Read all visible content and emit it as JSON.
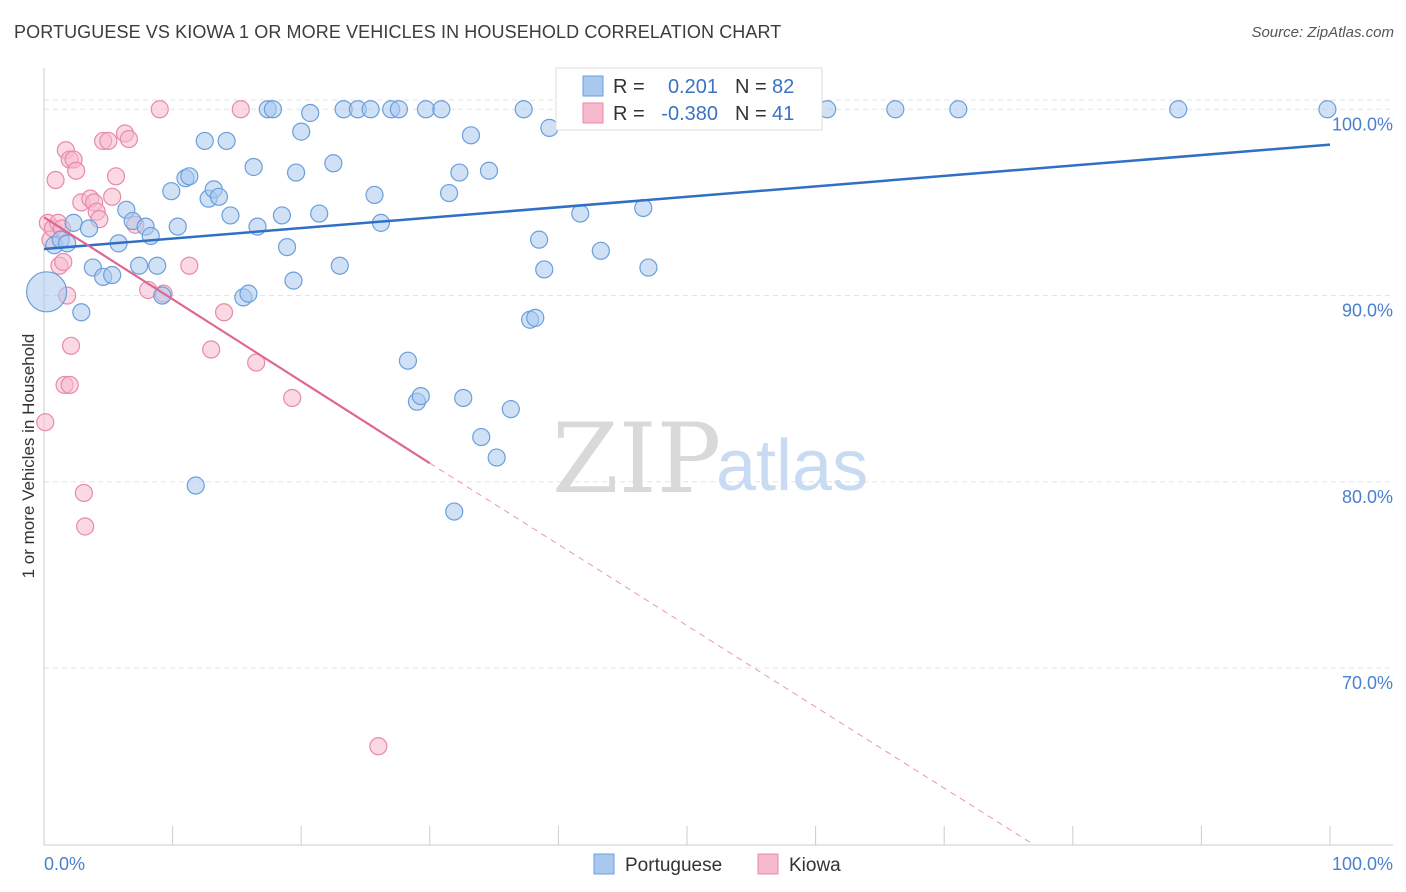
{
  "title": "PORTUGUESE VS KIOWA 1 OR MORE VEHICLES IN HOUSEHOLD CORRELATION CHART",
  "source": "Source: ZipAtlas.com",
  "watermark": {
    "zip": "ZIP",
    "atlas": "atlas"
  },
  "colors": {
    "portuguese_fill": "#a9c8ee",
    "portuguese_stroke": "#6a9fdc",
    "portuguese_line": "#2f6fc6",
    "kiowa_fill": "#f6b9cd",
    "kiowa_stroke": "#e88aa8",
    "kiowa_line": "#e06690",
    "axis_text": "#4a7fd0",
    "grid": "#e3e3e3"
  },
  "legend": {
    "rows": [
      {
        "r_label": "R =",
        "r_value": "0.201",
        "n_label": "N =",
        "n_value": "82"
      },
      {
        "r_label": "R =",
        "r_value": "-0.380",
        "n_label": "N =",
        "n_value": "41"
      }
    ]
  },
  "chart_data": {
    "type": "scatter",
    "title": "PORTUGUESE VS KIOWA 1 OR MORE VEHICLES IN HOUSEHOLD CORRELATION CHART",
    "xlabel": "",
    "ylabel": "1 or more Vehicles in Household",
    "xlim": [
      0,
      100
    ],
    "ylim": [
      60.5,
      102
    ],
    "x_tick_labels": [
      "0.0%",
      "100.0%"
    ],
    "y_ticks": [
      70,
      80,
      90,
      100
    ],
    "y_tick_labels": [
      "70.0%",
      "80.0%",
      "90.0%",
      "100.0%"
    ],
    "grid": true,
    "legend_position": "bottom",
    "series": [
      {
        "name": "Portuguese",
        "R": 0.201,
        "N": 82,
        "trend": {
          "x": [
            0,
            100
          ],
          "y": [
            92.5,
            98.1
          ]
        },
        "points": [
          [
            0.2,
            90.2
          ],
          [
            0.8,
            92.7
          ],
          [
            1.3,
            93.0
          ],
          [
            1.8,
            92.8
          ],
          [
            2.3,
            93.9
          ],
          [
            2.9,
            89.1
          ],
          [
            3.5,
            93.6
          ],
          [
            3.8,
            91.5
          ],
          [
            4.6,
            91.0
          ],
          [
            5.3,
            91.1
          ],
          [
            5.8,
            92.8
          ],
          [
            6.4,
            94.6
          ],
          [
            6.9,
            94.0
          ],
          [
            7.4,
            91.6
          ],
          [
            7.9,
            93.7
          ],
          [
            8.3,
            93.2
          ],
          [
            8.8,
            91.6
          ],
          [
            9.2,
            90.0
          ],
          [
            9.9,
            95.6
          ],
          [
            10.4,
            93.7
          ],
          [
            11.0,
            96.3
          ],
          [
            11.3,
            96.4
          ],
          [
            11.8,
            79.8
          ],
          [
            12.5,
            98.3
          ],
          [
            12.8,
            95.2
          ],
          [
            13.2,
            95.7
          ],
          [
            13.6,
            95.3
          ],
          [
            14.2,
            98.3
          ],
          [
            14.5,
            94.3
          ],
          [
            15.5,
            89.9
          ],
          [
            15.9,
            90.1
          ],
          [
            16.3,
            96.9
          ],
          [
            16.6,
            93.7
          ],
          [
            17.4,
            100.0
          ],
          [
            17.8,
            100.0
          ],
          [
            18.5,
            94.3
          ],
          [
            18.9,
            92.6
          ],
          [
            19.4,
            90.8
          ],
          [
            19.6,
            96.6
          ],
          [
            20.0,
            98.8
          ],
          [
            20.7,
            99.8
          ],
          [
            21.4,
            94.4
          ],
          [
            22.5,
            97.1
          ],
          [
            23.0,
            91.6
          ],
          [
            23.3,
            100.0
          ],
          [
            24.4,
            100.0
          ],
          [
            25.4,
            100.0
          ],
          [
            25.7,
            95.4
          ],
          [
            26.2,
            93.9
          ],
          [
            27.0,
            100.0
          ],
          [
            27.6,
            100.0
          ],
          [
            28.3,
            86.5
          ],
          [
            29.0,
            84.3
          ],
          [
            29.3,
            84.6
          ],
          [
            29.7,
            100.0
          ],
          [
            30.9,
            100.0
          ],
          [
            31.5,
            95.5
          ],
          [
            31.9,
            78.4
          ],
          [
            32.3,
            96.6
          ],
          [
            32.6,
            84.5
          ],
          [
            33.2,
            98.6
          ],
          [
            34.0,
            82.4
          ],
          [
            34.6,
            96.7
          ],
          [
            35.2,
            81.3
          ],
          [
            36.3,
            83.9
          ],
          [
            37.3,
            100.0
          ],
          [
            37.8,
            88.7
          ],
          [
            38.2,
            88.8
          ],
          [
            38.5,
            93.0
          ],
          [
            38.9,
            91.4
          ],
          [
            39.3,
            99.0
          ],
          [
            41.7,
            94.4
          ],
          [
            43.3,
            92.4
          ],
          [
            45.4,
            100.0
          ],
          [
            46.6,
            94.7
          ],
          [
            47.0,
            91.5
          ],
          [
            48.3,
            100.0
          ],
          [
            60.9,
            100.0
          ],
          [
            66.2,
            100.0
          ],
          [
            71.1,
            100.0
          ],
          [
            88.2,
            100.0
          ],
          [
            99.8,
            100.0
          ]
        ]
      },
      {
        "name": "Kiowa",
        "R": -0.38,
        "N": 41,
        "trend": {
          "x": [
            0,
            30
          ],
          "y": [
            94.2,
            81.0
          ]
        },
        "trend_extension": {
          "x": [
            30,
            77
          ],
          "y": [
            81.0,
            60.5
          ]
        },
        "points": [
          [
            0.1,
            83.2
          ],
          [
            0.3,
            93.9
          ],
          [
            0.5,
            93.0
          ],
          [
            0.7,
            93.6
          ],
          [
            0.9,
            96.2
          ],
          [
            1.1,
            93.9
          ],
          [
            1.2,
            91.6
          ],
          [
            1.4,
            93.6
          ],
          [
            1.5,
            91.8
          ],
          [
            1.6,
            85.2
          ],
          [
            1.7,
            97.8
          ],
          [
            1.8,
            90.0
          ],
          [
            2.0,
            97.3
          ],
          [
            2.0,
            85.2
          ],
          [
            2.1,
            87.3
          ],
          [
            2.3,
            97.3
          ],
          [
            2.5,
            96.7
          ],
          [
            2.9,
            95.0
          ],
          [
            3.1,
            79.4
          ],
          [
            3.2,
            77.6
          ],
          [
            3.6,
            95.2
          ],
          [
            3.9,
            95.0
          ],
          [
            4.1,
            94.5
          ],
          [
            4.3,
            94.1
          ],
          [
            4.6,
            98.3
          ],
          [
            5.0,
            98.3
          ],
          [
            5.3,
            95.3
          ],
          [
            5.6,
            96.4
          ],
          [
            6.3,
            98.7
          ],
          [
            6.6,
            98.4
          ],
          [
            7.1,
            93.8
          ],
          [
            8.1,
            90.3
          ],
          [
            9.0,
            100.0
          ],
          [
            9.3,
            90.1
          ],
          [
            11.3,
            91.6
          ],
          [
            13.0,
            87.1
          ],
          [
            14.0,
            89.1
          ],
          [
            15.3,
            100.0
          ],
          [
            16.5,
            86.4
          ],
          [
            19.3,
            84.5
          ],
          [
            26.0,
            65.8
          ]
        ]
      }
    ]
  }
}
